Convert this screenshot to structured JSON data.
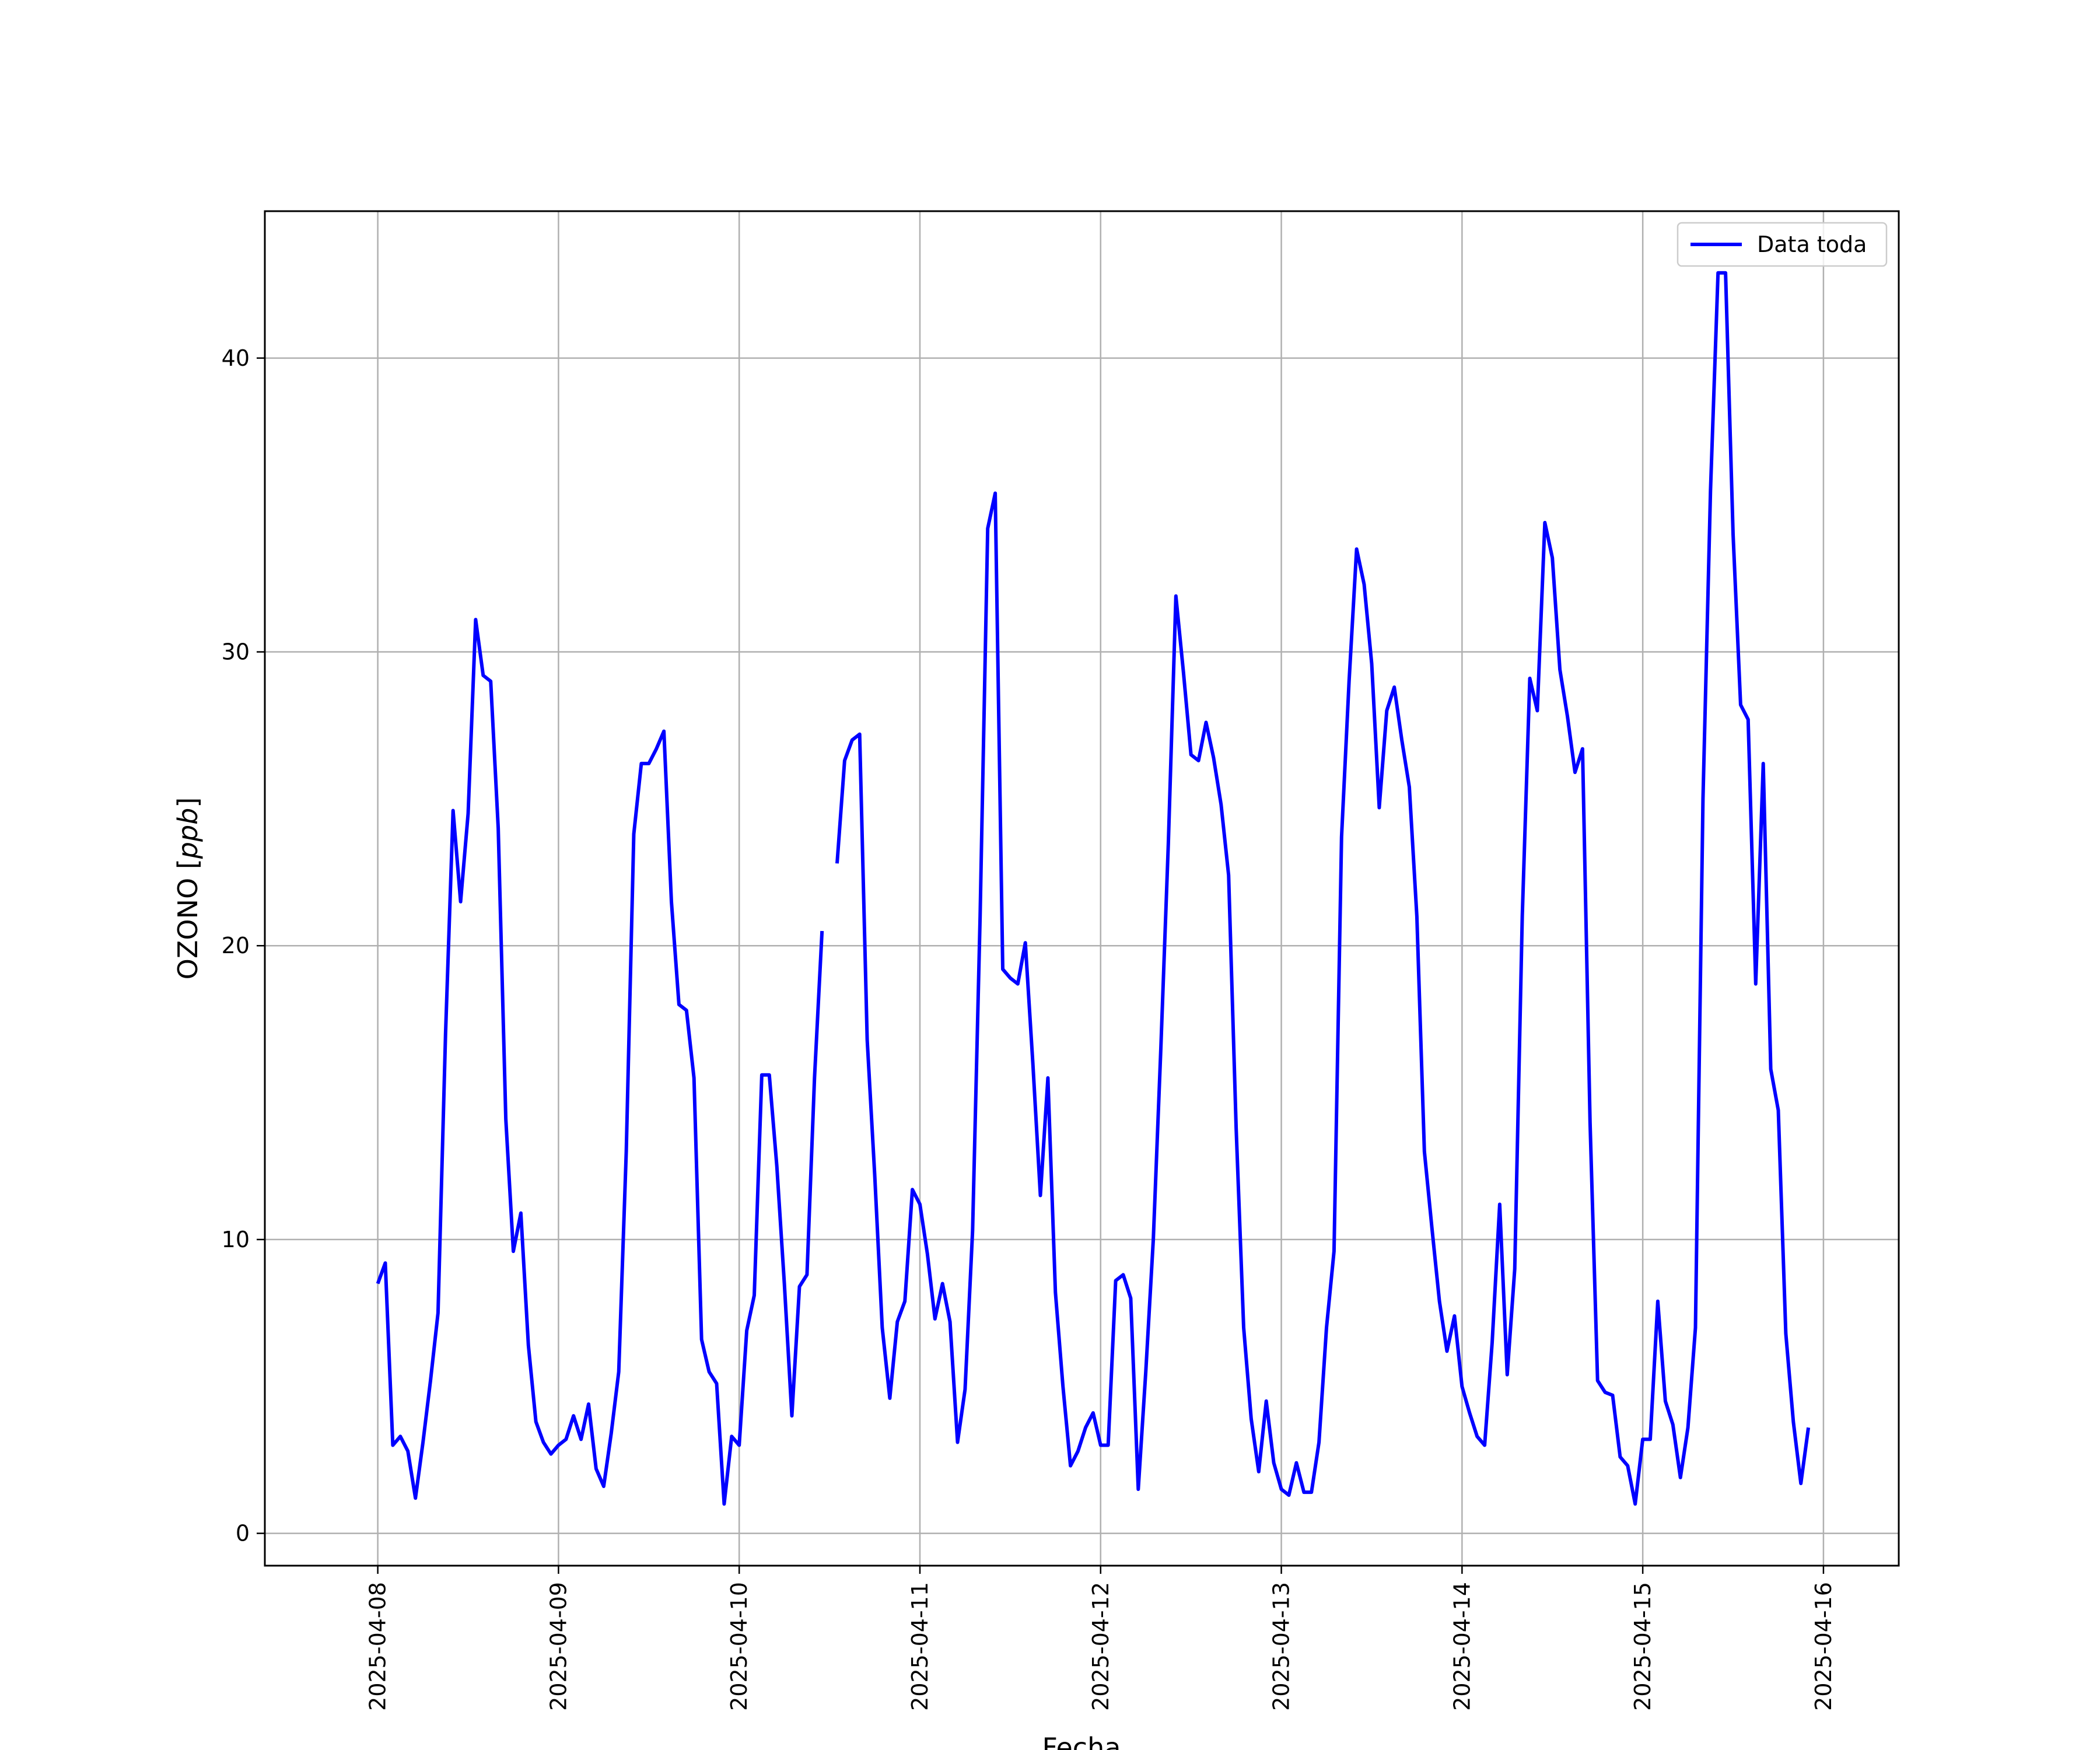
{
  "chart_data": {
    "type": "line",
    "title": "",
    "xlabel": "Fecha",
    "ylabel_text": "OZONO ",
    "ylabel_unit": "ppb",
    "x_ticks": [
      "2025-04-08",
      "2025-04-09",
      "2025-04-10",
      "2025-04-11",
      "2025-04-12",
      "2025-04-13",
      "2025-04-14",
      "2025-04-15",
      "2025-04-16"
    ],
    "y_ticks": [
      0,
      10,
      20,
      30,
      40
    ],
    "xlim": [
      "2025-04-07 09:00",
      "2025-04-16 10:00"
    ],
    "ylim": [
      -1.1,
      45
    ],
    "grid": true,
    "legend_position": "top-right",
    "colors": {
      "series": "#0000ff",
      "grid": "#b0b0b0"
    },
    "series": [
      {
        "name": "Data toda",
        "points": [
          [
            "2025-04-08 00:00",
            8.5
          ],
          [
            "2025-04-08 01:00",
            9.2
          ],
          [
            "2025-04-08 02:00",
            3.0
          ],
          [
            "2025-04-08 03:00",
            3.3
          ],
          [
            "2025-04-08 04:00",
            2.8
          ],
          [
            "2025-04-08 05:00",
            1.2
          ],
          [
            "2025-04-08 06:00",
            3.1
          ],
          [
            "2025-04-08 07:00",
            5.2
          ],
          [
            "2025-04-08 08:00",
            7.5
          ],
          [
            "2025-04-08 09:00",
            17.0
          ],
          [
            "2025-04-08 10:00",
            24.6
          ],
          [
            "2025-04-08 11:00",
            21.5
          ],
          [
            "2025-04-08 12:00",
            24.5
          ],
          [
            "2025-04-08 13:00",
            31.1
          ],
          [
            "2025-04-08 14:00",
            29.2
          ],
          [
            "2025-04-08 15:00",
            29.0
          ],
          [
            "2025-04-08 16:00",
            24.0
          ],
          [
            "2025-04-08 17:00",
            14.1
          ],
          [
            "2025-04-08 18:00",
            9.6
          ],
          [
            "2025-04-08 19:00",
            10.9
          ],
          [
            "2025-04-08 20:00",
            6.4
          ],
          [
            "2025-04-08 21:00",
            3.8
          ],
          [
            "2025-04-08 22:00",
            3.1
          ],
          [
            "2025-04-08 23:00",
            2.7
          ],
          [
            "2025-04-09 00:00",
            3.0
          ],
          [
            "2025-04-09 01:00",
            3.2
          ],
          [
            "2025-04-09 02:00",
            4.0
          ],
          [
            "2025-04-09 03:00",
            3.2
          ],
          [
            "2025-04-09 04:00",
            4.4
          ],
          [
            "2025-04-09 05:00",
            2.2
          ],
          [
            "2025-04-09 06:00",
            1.6
          ],
          [
            "2025-04-09 07:00",
            3.4
          ],
          [
            "2025-04-09 08:00",
            5.5
          ],
          [
            "2025-04-09 09:00",
            13.0
          ],
          [
            "2025-04-09 10:00",
            23.8
          ],
          [
            "2025-04-09 11:00",
            26.2
          ],
          [
            "2025-04-09 12:00",
            26.2
          ],
          [
            "2025-04-09 13:00",
            26.7
          ],
          [
            "2025-04-09 14:00",
            27.3
          ],
          [
            "2025-04-09 15:00",
            21.5
          ],
          [
            "2025-04-09 16:00",
            18.0
          ],
          [
            "2025-04-09 17:00",
            17.8
          ],
          [
            "2025-04-09 18:00",
            15.5
          ],
          [
            "2025-04-09 19:00",
            6.6
          ],
          [
            "2025-04-09 20:00",
            5.5
          ],
          [
            "2025-04-09 21:00",
            5.1
          ],
          [
            "2025-04-09 22:00",
            1.0
          ],
          [
            "2025-04-09 23:00",
            3.3
          ],
          [
            "2025-04-10 00:00",
            3.0
          ],
          [
            "2025-04-10 01:00",
            6.9
          ],
          [
            "2025-04-10 02:00",
            8.1
          ],
          [
            "2025-04-10 03:00",
            15.6
          ],
          [
            "2025-04-10 04:00",
            15.6
          ],
          [
            "2025-04-10 05:00",
            12.5
          ],
          [
            "2025-04-10 06:00",
            8.5
          ],
          [
            "2025-04-10 07:00",
            4.0
          ],
          [
            "2025-04-10 08:00",
            8.4
          ],
          [
            "2025-04-10 09:00",
            8.8
          ],
          [
            "2025-04-10 10:00",
            15.5
          ],
          [
            "2025-04-10 11:00",
            20.5
          ],
          [
            "2025-04-10 12:00",
            null
          ],
          [
            "2025-04-10 13:00",
            22.8
          ],
          [
            "2025-04-10 14:00",
            26.3
          ],
          [
            "2025-04-10 15:00",
            27.0
          ],
          [
            "2025-04-10 16:00",
            27.2
          ],
          [
            "2025-04-10 17:00",
            16.8
          ],
          [
            "2025-04-10 18:00",
            12.2
          ],
          [
            "2025-04-10 19:00",
            7.0
          ],
          [
            "2025-04-10 20:00",
            4.6
          ],
          [
            "2025-04-10 21:00",
            7.2
          ],
          [
            "2025-04-10 22:00",
            7.9
          ],
          [
            "2025-04-10 23:00",
            11.7
          ],
          [
            "2025-04-11 00:00",
            11.2
          ],
          [
            "2025-04-11 01:00",
            9.5
          ],
          [
            "2025-04-11 02:00",
            7.3
          ],
          [
            "2025-04-11 03:00",
            8.5
          ],
          [
            "2025-04-11 04:00",
            7.2
          ],
          [
            "2025-04-11 05:00",
            3.1
          ],
          [
            "2025-04-11 06:00",
            4.9
          ],
          [
            "2025-04-11 07:00",
            10.3
          ],
          [
            "2025-04-11 08:00",
            21.0
          ],
          [
            "2025-04-11 09:00",
            34.2
          ],
          [
            "2025-04-11 10:00",
            35.4
          ],
          [
            "2025-04-11 11:00",
            19.2
          ],
          [
            "2025-04-11 12:00",
            18.9
          ],
          [
            "2025-04-11 13:00",
            18.7
          ],
          [
            "2025-04-11 14:00",
            20.1
          ],
          [
            "2025-04-11 15:00",
            16.0
          ],
          [
            "2025-04-11 16:00",
            11.5
          ],
          [
            "2025-04-11 17:00",
            15.5
          ],
          [
            "2025-04-11 18:00",
            8.2
          ],
          [
            "2025-04-11 19:00",
            5.0
          ],
          [
            "2025-04-11 20:00",
            2.3
          ],
          [
            "2025-04-11 21:00",
            2.8
          ],
          [
            "2025-04-11 22:00",
            3.6
          ],
          [
            "2025-04-11 23:00",
            4.1
          ],
          [
            "2025-04-12 00:00",
            3.0
          ],
          [
            "2025-04-12 01:00",
            3.0
          ],
          [
            "2025-04-12 02:00",
            8.6
          ],
          [
            "2025-04-12 03:00",
            8.8
          ],
          [
            "2025-04-12 04:00",
            8.0
          ],
          [
            "2025-04-12 05:00",
            1.5
          ],
          [
            "2025-04-12 06:00",
            5.5
          ],
          [
            "2025-04-12 07:00",
            10.0
          ],
          [
            "2025-04-12 08:00",
            16.5
          ],
          [
            "2025-04-12 09:00",
            23.5
          ],
          [
            "2025-04-12 10:00",
            31.9
          ],
          [
            "2025-04-12 11:00",
            29.3
          ],
          [
            "2025-04-12 12:00",
            26.5
          ],
          [
            "2025-04-12 13:00",
            26.3
          ],
          [
            "2025-04-12 14:00",
            27.6
          ],
          [
            "2025-04-12 15:00",
            26.4
          ],
          [
            "2025-04-12 16:00",
            24.8
          ],
          [
            "2025-04-12 17:00",
            22.4
          ],
          [
            "2025-04-12 18:00",
            13.8
          ],
          [
            "2025-04-12 19:00",
            7.0
          ],
          [
            "2025-04-12 20:00",
            3.9
          ],
          [
            "2025-04-12 21:00",
            2.1
          ],
          [
            "2025-04-12 22:00",
            4.5
          ],
          [
            "2025-04-12 23:00",
            2.4
          ],
          [
            "2025-04-13 00:00",
            1.5
          ],
          [
            "2025-04-13 01:00",
            1.3
          ],
          [
            "2025-04-13 02:00",
            2.4
          ],
          [
            "2025-04-13 03:00",
            1.4
          ],
          [
            "2025-04-13 04:00",
            1.4
          ],
          [
            "2025-04-13 05:00",
            3.1
          ],
          [
            "2025-04-13 06:00",
            7.0
          ],
          [
            "2025-04-13 07:00",
            9.6
          ],
          [
            "2025-04-13 08:00",
            23.7
          ],
          [
            "2025-04-13 09:00",
            29.0
          ],
          [
            "2025-04-13 10:00",
            33.5
          ],
          [
            "2025-04-13 11:00",
            32.3
          ],
          [
            "2025-04-13 12:00",
            29.6
          ],
          [
            "2025-04-13 13:00",
            24.7
          ],
          [
            "2025-04-13 14:00",
            28.0
          ],
          [
            "2025-04-13 15:00",
            28.8
          ],
          [
            "2025-04-13 16:00",
            27.0
          ],
          [
            "2025-04-13 17:00",
            25.4
          ],
          [
            "2025-04-13 18:00",
            21.0
          ],
          [
            "2025-04-13 19:00",
            13.0
          ],
          [
            "2025-04-13 20:00",
            10.4
          ],
          [
            "2025-04-13 21:00",
            7.9
          ],
          [
            "2025-04-13 22:00",
            6.2
          ],
          [
            "2025-04-13 23:00",
            7.4
          ],
          [
            "2025-04-14 00:00",
            5.0
          ],
          [
            "2025-04-14 01:00",
            4.1
          ],
          [
            "2025-04-14 02:00",
            3.3
          ],
          [
            "2025-04-14 03:00",
            3.0
          ],
          [
            "2025-04-14 04:00",
            6.5
          ],
          [
            "2025-04-14 05:00",
            11.2
          ],
          [
            "2025-04-14 06:00",
            5.4
          ],
          [
            "2025-04-14 07:00",
            9.0
          ],
          [
            "2025-04-14 08:00",
            21.0
          ],
          [
            "2025-04-14 09:00",
            29.1
          ],
          [
            "2025-04-14 10:00",
            28.0
          ],
          [
            "2025-04-14 11:00",
            34.4
          ],
          [
            "2025-04-14 12:00",
            33.2
          ],
          [
            "2025-04-14 13:00",
            29.4
          ],
          [
            "2025-04-14 14:00",
            27.8
          ],
          [
            "2025-04-14 15:00",
            25.9
          ],
          [
            "2025-04-14 16:00",
            26.7
          ],
          [
            "2025-04-14 17:00",
            14.0
          ],
          [
            "2025-04-14 18:00",
            5.2
          ],
          [
            "2025-04-14 19:00",
            4.8
          ],
          [
            "2025-04-14 20:00",
            4.7
          ],
          [
            "2025-04-14 21:00",
            2.6
          ],
          [
            "2025-04-14 22:00",
            2.3
          ],
          [
            "2025-04-14 23:00",
            1.0
          ],
          [
            "2025-04-15 00:00",
            3.2
          ],
          [
            "2025-04-15 01:00",
            3.2
          ],
          [
            "2025-04-15 02:00",
            7.9
          ],
          [
            "2025-04-15 03:00",
            4.5
          ],
          [
            "2025-04-15 04:00",
            3.7
          ],
          [
            "2025-04-15 05:00",
            1.9
          ],
          [
            "2025-04-15 06:00",
            3.6
          ],
          [
            "2025-04-15 07:00",
            7.0
          ],
          [
            "2025-04-15 08:00",
            25.0
          ],
          [
            "2025-04-15 09:00",
            35.5
          ],
          [
            "2025-04-15 10:00",
            42.9
          ],
          [
            "2025-04-15 11:00",
            42.9
          ],
          [
            "2025-04-15 12:00",
            34.0
          ],
          [
            "2025-04-15 13:00",
            28.2
          ],
          [
            "2025-04-15 14:00",
            27.7
          ],
          [
            "2025-04-15 15:00",
            18.7
          ],
          [
            "2025-04-15 16:00",
            26.2
          ],
          [
            "2025-04-15 17:00",
            15.8
          ],
          [
            "2025-04-15 18:00",
            14.4
          ],
          [
            "2025-04-15 19:00",
            6.8
          ],
          [
            "2025-04-15 20:00",
            3.8
          ],
          [
            "2025-04-15 21:00",
            1.7
          ],
          [
            "2025-04-15 22:00",
            3.6
          ]
        ]
      }
    ]
  }
}
